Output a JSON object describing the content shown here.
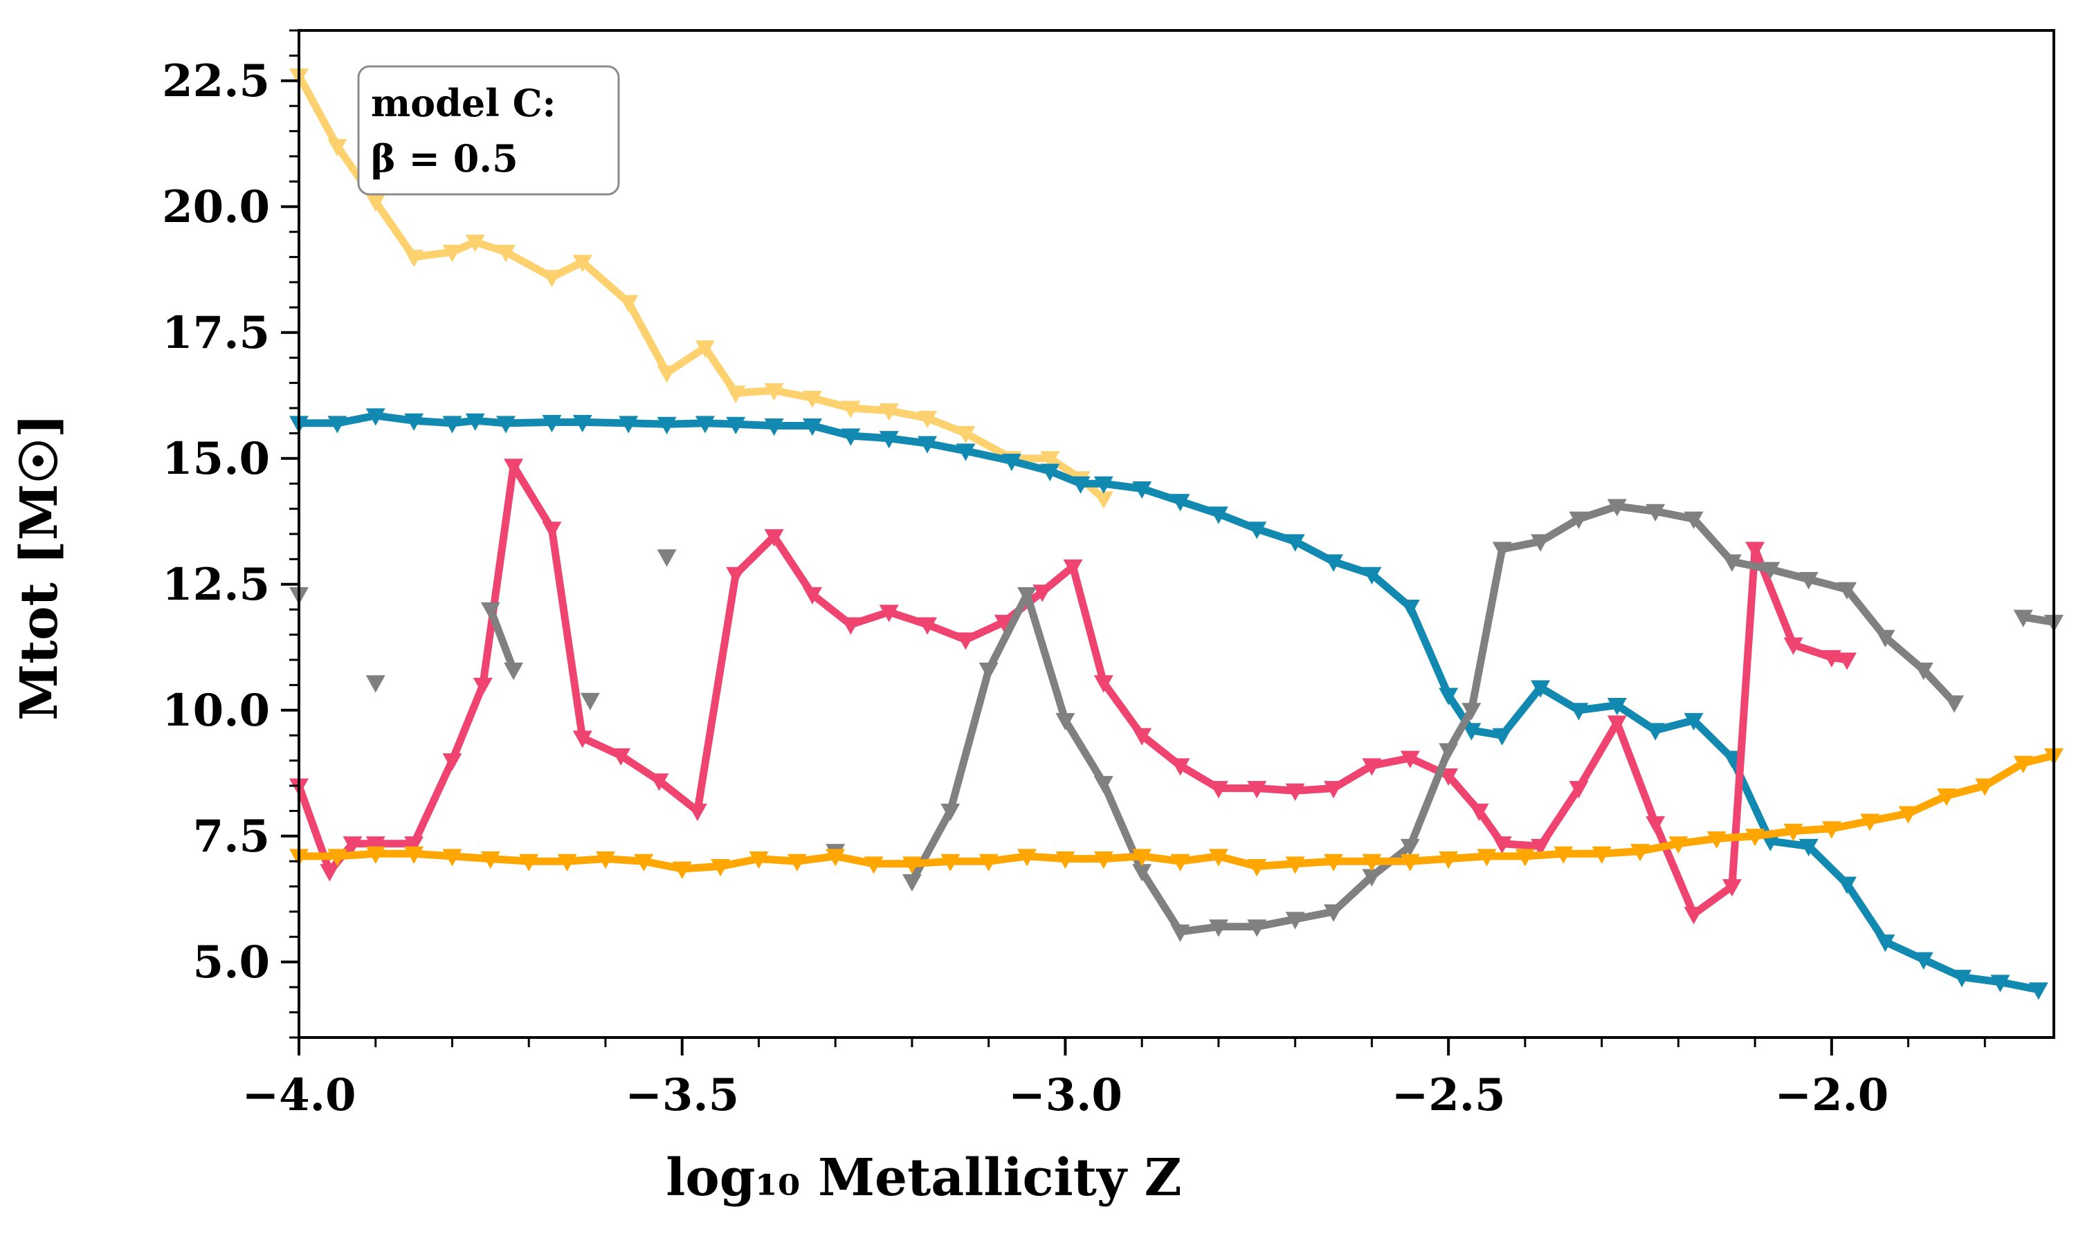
{
  "chart_data": {
    "type": "line",
    "xlabel": "log₁₀ Metallicity Z",
    "ylabel": "Mtot [M☉]",
    "xlim": [
      -4.0,
      -1.71
    ],
    "ylim": [
      3.5,
      23.5
    ],
    "x_ticks": [
      -4.0,
      -3.5,
      -3.0,
      -2.5,
      -2.0
    ],
    "x_tick_labels": [
      "−4.0",
      "−3.5",
      "−3.0",
      "−2.5",
      "−2.0"
    ],
    "y_ticks": [
      5.0,
      7.5,
      10.0,
      12.5,
      15.0,
      17.5,
      20.0,
      22.5
    ],
    "y_tick_labels": [
      "5.0",
      "7.5",
      "10.0",
      "12.5",
      "15.0",
      "17.5",
      "20.0",
      "22.5"
    ],
    "grid": false,
    "marker": "triangle-down",
    "annotation": {
      "lines": [
        "model C:",
        "β = 0.5"
      ],
      "placement": "top-left"
    },
    "series": [
      {
        "color": "#fdd26e",
        "segments": [
          [
            [
              -4.0,
              22.6
            ],
            [
              -3.95,
              21.2
            ],
            [
              -3.9,
              20.1
            ],
            [
              -3.85,
              19.0
            ],
            [
              -3.8,
              19.1
            ],
            [
              -3.77,
              19.3
            ],
            [
              -3.73,
              19.1
            ],
            [
              -3.67,
              18.6
            ],
            [
              -3.63,
              18.9
            ],
            [
              -3.57,
              18.1
            ],
            [
              -3.52,
              16.7
            ],
            [
              -3.47,
              17.2
            ],
            [
              -3.43,
              16.3
            ],
            [
              -3.38,
              16.35
            ],
            [
              -3.33,
              16.2
            ],
            [
              -3.28,
              16.0
            ],
            [
              -3.23,
              15.95
            ],
            [
              -3.18,
              15.8
            ],
            [
              -3.13,
              15.5
            ],
            [
              -3.07,
              15.0
            ],
            [
              -3.02,
              15.0
            ],
            [
              -2.98,
              14.6
            ],
            [
              -2.95,
              14.2
            ]
          ]
        ]
      },
      {
        "color": "#1289b0",
        "segments": [
          [
            [
              -4.0,
              15.7
            ],
            [
              -3.95,
              15.7
            ],
            [
              -3.9,
              15.85
            ],
            [
              -3.85,
              15.75
            ],
            [
              -3.8,
              15.7
            ],
            [
              -3.77,
              15.75
            ],
            [
              -3.73,
              15.7
            ],
            [
              -3.67,
              15.72
            ],
            [
              -3.63,
              15.72
            ],
            [
              -3.57,
              15.7
            ],
            [
              -3.52,
              15.68
            ],
            [
              -3.47,
              15.7
            ],
            [
              -3.43,
              15.68
            ],
            [
              -3.38,
              15.65
            ],
            [
              -3.33,
              15.65
            ],
            [
              -3.28,
              15.45
            ],
            [
              -3.23,
              15.4
            ],
            [
              -3.18,
              15.3
            ],
            [
              -3.13,
              15.15
            ],
            [
              -3.07,
              14.95
            ],
            [
              -3.02,
              14.75
            ],
            [
              -2.98,
              14.5
            ],
            [
              -2.95,
              14.5
            ],
            [
              -2.9,
              14.4
            ],
            [
              -2.85,
              14.15
            ],
            [
              -2.8,
              13.9
            ],
            [
              -2.75,
              13.6
            ],
            [
              -2.7,
              13.35
            ],
            [
              -2.65,
              12.95
            ],
            [
              -2.6,
              12.7
            ],
            [
              -2.55,
              12.05
            ],
            [
              -2.5,
              10.3
            ],
            [
              -2.47,
              9.6
            ],
            [
              -2.43,
              9.5
            ],
            [
              -2.38,
              10.45
            ],
            [
              -2.33,
              10.0
            ],
            [
              -2.28,
              10.1
            ],
            [
              -2.23,
              9.6
            ],
            [
              -2.18,
              9.8
            ],
            [
              -2.13,
              9.05
            ],
            [
              -2.08,
              7.4
            ],
            [
              -2.03,
              7.3
            ],
            [
              -1.98,
              6.55
            ],
            [
              -1.93,
              5.4
            ],
            [
              -1.88,
              5.05
            ],
            [
              -1.83,
              4.7
            ],
            [
              -1.78,
              4.6
            ],
            [
              -1.73,
              4.45
            ]
          ]
        ]
      },
      {
        "color": "#ef4370",
        "segments": [
          [
            [
              -4.0,
              8.5
            ],
            [
              -3.96,
              6.8
            ],
            [
              -3.93,
              7.35
            ],
            [
              -3.9,
              7.35
            ],
            [
              -3.85,
              7.35
            ],
            [
              -3.8,
              9.0
            ],
            [
              -3.76,
              10.5
            ],
            [
              -3.72,
              14.85
            ],
            [
              -3.67,
              13.6
            ],
            [
              -3.63,
              9.45
            ],
            [
              -3.58,
              9.1
            ],
            [
              -3.53,
              8.6
            ],
            [
              -3.48,
              8.0
            ],
            [
              -3.43,
              12.7
            ],
            [
              -3.38,
              13.45
            ],
            [
              -3.33,
              12.3
            ],
            [
              -3.28,
              11.7
            ],
            [
              -3.23,
              11.95
            ],
            [
              -3.18,
              11.7
            ],
            [
              -3.13,
              11.4
            ],
            [
              -3.08,
              11.75
            ],
            [
              -3.03,
              12.35
            ],
            [
              -2.99,
              12.85
            ],
            [
              -2.95,
              10.55
            ],
            [
              -2.9,
              9.5
            ],
            [
              -2.85,
              8.9
            ],
            [
              -2.8,
              8.45
            ],
            [
              -2.75,
              8.45
            ],
            [
              -2.7,
              8.4
            ],
            [
              -2.65,
              8.45
            ],
            [
              -2.6,
              8.9
            ],
            [
              -2.55,
              9.05
            ],
            [
              -2.5,
              8.7
            ],
            [
              -2.46,
              8.0
            ],
            [
              -2.43,
              7.35
            ],
            [
              -2.38,
              7.3
            ],
            [
              -2.33,
              8.45
            ],
            [
              -2.28,
              9.75
            ],
            [
              -2.23,
              7.75
            ],
            [
              -2.18,
              5.95
            ],
            [
              -2.13,
              6.5
            ],
            [
              -2.1,
              13.2
            ],
            [
              -2.05,
              11.3
            ],
            [
              -2.0,
              11.05
            ],
            [
              -1.98,
              11.0
            ]
          ]
        ]
      },
      {
        "color": "#808080",
        "segments": [
          [
            [
              -4.0,
              12.3
            ]
          ],
          [
            [
              -3.9,
              10.55
            ]
          ],
          [
            [
              -3.75,
              12.0
            ],
            [
              -3.72,
              10.8
            ]
          ],
          [
            [
              -3.62,
              10.2
            ]
          ],
          [
            [
              -3.52,
              13.05
            ]
          ],
          [
            [
              -3.3,
              7.2
            ]
          ],
          [
            [
              -3.2,
              6.6
            ],
            [
              -3.15,
              8.0
            ],
            [
              -3.1,
              10.8
            ],
            [
              -3.05,
              12.3
            ],
            [
              -3.0,
              9.8
            ],
            [
              -2.95,
              8.55
            ],
            [
              -2.9,
              6.8
            ],
            [
              -2.85,
              5.6
            ],
            [
              -2.8,
              5.7
            ],
            [
              -2.75,
              5.7
            ],
            [
              -2.7,
              5.85
            ],
            [
              -2.65,
              6.0
            ],
            [
              -2.6,
              6.7
            ],
            [
              -2.55,
              7.3
            ],
            [
              -2.5,
              9.2
            ],
            [
              -2.47,
              10.0
            ],
            [
              -2.43,
              13.2
            ],
            [
              -2.38,
              13.35
            ],
            [
              -2.33,
              13.8
            ],
            [
              -2.28,
              14.05
            ],
            [
              -2.23,
              13.95
            ],
            [
              -2.18,
              13.8
            ],
            [
              -2.13,
              12.95
            ],
            [
              -2.08,
              12.8
            ],
            [
              -2.03,
              12.6
            ],
            [
              -1.98,
              12.4
            ],
            [
              -1.93,
              11.45
            ],
            [
              -1.88,
              10.8
            ],
            [
              -1.84,
              10.15
            ]
          ],
          [
            [
              -1.75,
              11.85
            ],
            [
              -1.71,
              11.75
            ]
          ]
        ]
      },
      {
        "color": "#ffa600",
        "segments": [
          [
            [
              -4.0,
              7.1
            ],
            [
              -3.95,
              7.1
            ],
            [
              -3.9,
              7.15
            ],
            [
              -3.85,
              7.15
            ],
            [
              -3.8,
              7.1
            ],
            [
              -3.75,
              7.05
            ],
            [
              -3.7,
              7.0
            ],
            [
              -3.65,
              7.0
            ],
            [
              -3.6,
              7.05
            ],
            [
              -3.55,
              7.0
            ],
            [
              -3.5,
              6.85
            ],
            [
              -3.45,
              6.9
            ],
            [
              -3.4,
              7.05
            ],
            [
              -3.35,
              7.0
            ],
            [
              -3.3,
              7.1
            ],
            [
              -3.25,
              6.95
            ],
            [
              -3.2,
              6.95
            ],
            [
              -3.15,
              7.0
            ],
            [
              -3.1,
              7.0
            ],
            [
              -3.05,
              7.1
            ],
            [
              -3.0,
              7.05
            ],
            [
              -2.95,
              7.05
            ],
            [
              -2.9,
              7.1
            ],
            [
              -2.85,
              7.0
            ],
            [
              -2.8,
              7.1
            ],
            [
              -2.75,
              6.9
            ],
            [
              -2.7,
              6.95
            ],
            [
              -2.65,
              7.0
            ],
            [
              -2.6,
              7.0
            ],
            [
              -2.55,
              7.0
            ],
            [
              -2.5,
              7.05
            ],
            [
              -2.45,
              7.1
            ],
            [
              -2.4,
              7.1
            ],
            [
              -2.35,
              7.15
            ],
            [
              -2.3,
              7.15
            ],
            [
              -2.25,
              7.2
            ],
            [
              -2.2,
              7.35
            ],
            [
              -2.15,
              7.45
            ],
            [
              -2.1,
              7.5
            ],
            [
              -2.05,
              7.6
            ],
            [
              -2.0,
              7.65
            ],
            [
              -1.95,
              7.8
            ],
            [
              -1.9,
              7.95
            ],
            [
              -1.85,
              8.3
            ],
            [
              -1.8,
              8.5
            ],
            [
              -1.75,
              8.95
            ],
            [
              -1.71,
              9.1
            ]
          ]
        ]
      }
    ]
  }
}
